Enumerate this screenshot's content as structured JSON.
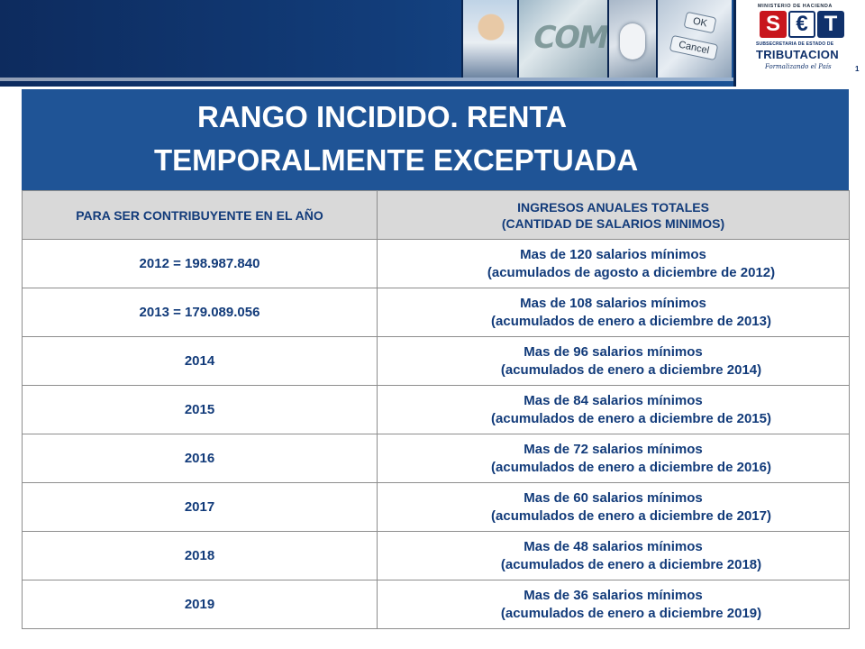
{
  "banner": {
    "photo_com_text": "COM",
    "ok_label": "OK",
    "cancel_label": "Cancel",
    "logo": {
      "ministry": "MINISTERIO DE HACIENDA",
      "letters": [
        "S",
        "€",
        "T"
      ],
      "subsecretaria": "SUBSECRETARIA DE ESTADO DE",
      "tributacion": "TRIBUTACION",
      "slogan": "Formalizando el País",
      "page_number": "1"
    }
  },
  "title": {
    "line1": "RANGO INCIDIDO. RENTA",
    "line2": "TEMPORALMENTE EXCEPTUADA"
  },
  "table": {
    "headers": [
      "PARA SER CONTRIBUYENTE EN EL AÑO",
      "INGRESOS ANUALES TOTALES",
      "(CANTIDAD DE SALARIOS MINIMOS)"
    ],
    "rows": [
      {
        "year": "2012 = 198.987.840",
        "line1": "Mas de 120 salarios mínimos",
        "line2": "(acumulados de agosto a diciembre de 2012)"
      },
      {
        "year": "2013 = 179.089.056",
        "line1": "Mas de 108 salarios mínimos",
        "line2": "(acumulados de enero a diciembre de 2013)"
      },
      {
        "year": "2014",
        "line1": "Mas de 96 salarios mínimos",
        "line2": "(acumulados de enero a diciembre 2014)"
      },
      {
        "year": "2015",
        "line1": "Mas de 84 salarios mínimos",
        "line2": "(acumulados de enero a diciembre de 2015)"
      },
      {
        "year": "2016",
        "line1": "Mas de 72 salarios mínimos",
        "line2": "(acumulados de enero a diciembre de 2016)"
      },
      {
        "year": "2017",
        "line1": "Mas de 60 salarios mínimos",
        "line2": "(acumulados de enero a diciembre de 2017)"
      },
      {
        "year": "2018",
        "line1": "Mas de 48 salarios mínimos",
        "line2": "(acumulados de enero a diciembre 2018)"
      },
      {
        "year": "2019",
        "line1": "Mas de 36 salarios mínimos",
        "line2": "(acumulados de enero a diciembre 2019)"
      }
    ]
  }
}
